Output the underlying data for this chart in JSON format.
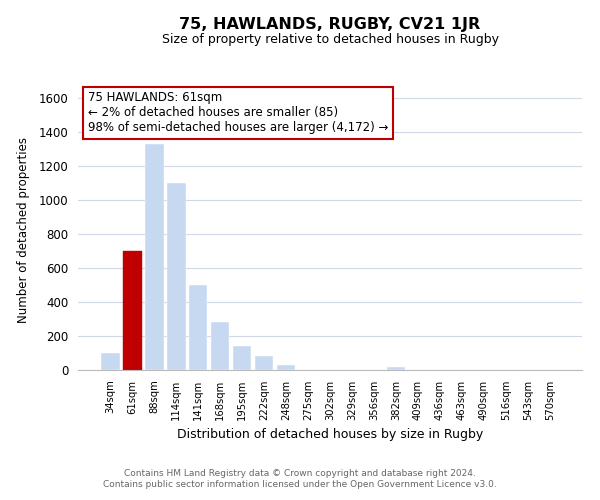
{
  "title": "75, HAWLANDS, RUGBY, CV21 1JR",
  "subtitle": "Size of property relative to detached houses in Rugby",
  "xlabel": "Distribution of detached houses by size in Rugby",
  "ylabel": "Number of detached properties",
  "bar_labels": [
    "34sqm",
    "61sqm",
    "88sqm",
    "114sqm",
    "141sqm",
    "168sqm",
    "195sqm",
    "222sqm",
    "248sqm",
    "275sqm",
    "302sqm",
    "329sqm",
    "356sqm",
    "382sqm",
    "409sqm",
    "436sqm",
    "463sqm",
    "490sqm",
    "516sqm",
    "543sqm",
    "570sqm"
  ],
  "bar_values": [
    100,
    700,
    1330,
    1100,
    500,
    280,
    140,
    80,
    30,
    0,
    0,
    0,
    0,
    20,
    0,
    0,
    0,
    0,
    0,
    0,
    0
  ],
  "bar_color": "#c6d9f0",
  "highlight_bar_index": 1,
  "highlight_bar_color": "#c00000",
  "annotation_title": "75 HAWLANDS: 61sqm",
  "annotation_line1": "← 2% of detached houses are smaller (85)",
  "annotation_line2": "98% of semi-detached houses are larger (4,172) →",
  "annotation_box_color": "#ffffff",
  "annotation_box_edge": "#c00000",
  "ylim": [
    0,
    1650
  ],
  "yticks": [
    0,
    200,
    400,
    600,
    800,
    1000,
    1200,
    1400,
    1600
  ],
  "footnote1": "Contains HM Land Registry data © Crown copyright and database right 2024.",
  "footnote2": "Contains public sector information licensed under the Open Government Licence v3.0.",
  "background_color": "#ffffff",
  "grid_color": "#d0d8e8"
}
